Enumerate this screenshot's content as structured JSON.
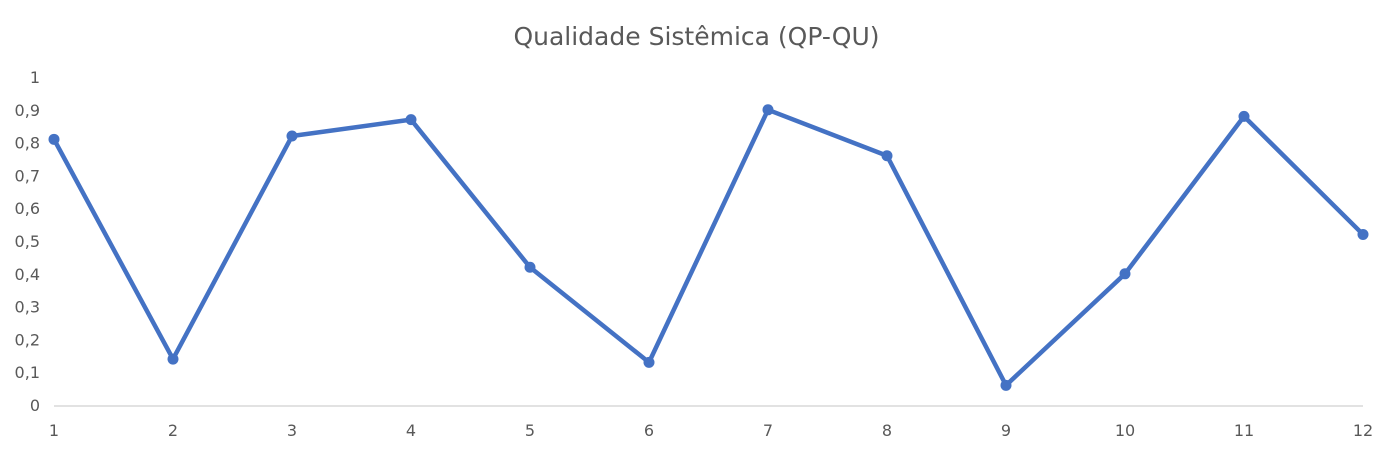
{
  "chart_data": {
    "type": "line",
    "title": "Qualidade Sistêmica (QP-QU)",
    "xlabel": "",
    "ylabel": "",
    "categories": [
      "1",
      "2",
      "3",
      "4",
      "5",
      "6",
      "7",
      "8",
      "9",
      "10",
      "11",
      "12"
    ],
    "series": [
      {
        "values": [
          0.81,
          0.14,
          0.82,
          0.87,
          0.42,
          0.13,
          0.9,
          0.76,
          0.06,
          0.4,
          0.88,
          0.52
        ],
        "color": "#4472C4"
      }
    ],
    "ylim": [
      0,
      1
    ],
    "yticks": [
      "0",
      "0,1",
      "0,2",
      "0,3",
      "0,4",
      "0,5",
      "0,6",
      "0,7",
      "0,8",
      "0,9",
      "1"
    ],
    "grid": false,
    "legend": "none",
    "axis_color": "#D9D9D9",
    "text_color": "#595959"
  }
}
